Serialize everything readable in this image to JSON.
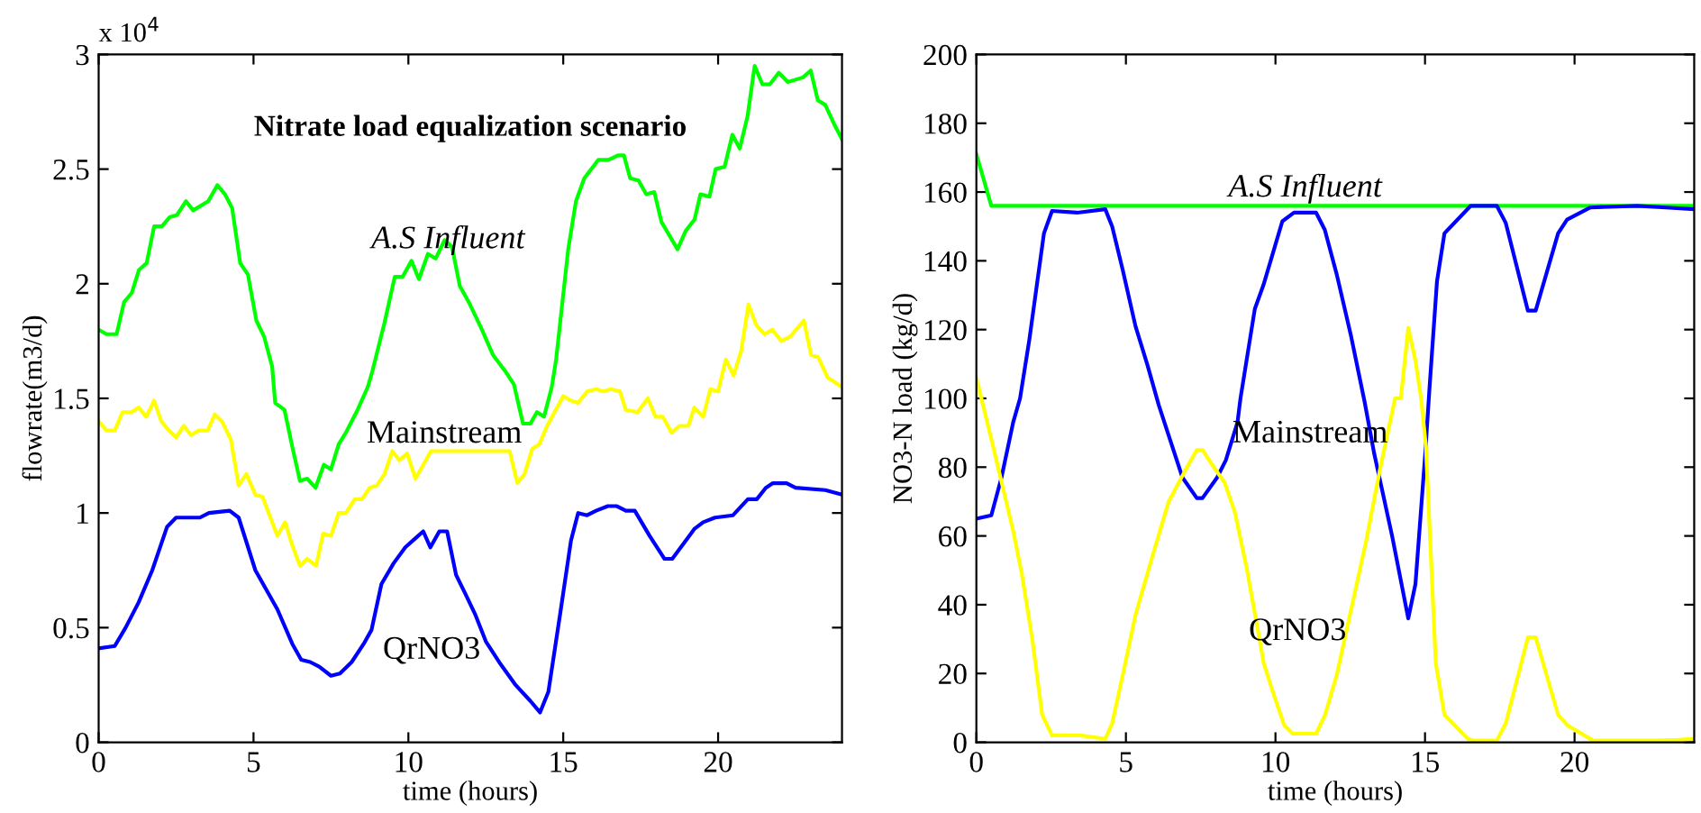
{
  "chart_data": [
    {
      "type": "line",
      "title": "Nitrate load equalization scenario",
      "xlabel": "time (hours)",
      "ylabel": "flowrate(m3/d)",
      "xlim": [
        0,
        24
      ],
      "xticks": [
        0,
        5,
        10,
        15,
        20
      ],
      "ylim": [
        0,
        3
      ],
      "yticks": [
        0,
        0.5,
        1,
        1.5,
        2,
        2.5,
        3
      ],
      "grid": false,
      "line_style": "solid",
      "marker": "none",
      "annotations": [
        "x 10$^{4}$",
        "A.S Influent",
        "Mainstream",
        "QrNO3"
      ],
      "series": [
        {
          "color": "#00ff00",
          "x": [
            0,
            0.25,
            0.58,
            0.82,
            1.07,
            1.3,
            1.55,
            1.79,
            2.04,
            2.29,
            2.53,
            2.82,
            3.05,
            3.54,
            3.83,
            4.08,
            4.31,
            4.57,
            4.82,
            5.09,
            5.34,
            5.6,
            5.7,
            6.0,
            6.25,
            6.5,
            6.73,
            7.0,
            7.27,
            7.5,
            7.75,
            7.98,
            8.36,
            8.69,
            8.84,
            9.23,
            9.56,
            9.81,
            10.1,
            10.34,
            10.63,
            10.88,
            11.17,
            11.41,
            11.66,
            11.95,
            12.34,
            12.73,
            13.12,
            13.41,
            13.7,
            13.94,
            14.15,
            14.38,
            14.63,
            14.77,
            15.16,
            15.41,
            15.68,
            16.13,
            16.46,
            16.77,
            16.96,
            17.16,
            17.43,
            17.68,
            17.94,
            18.17,
            18.69,
            18.95,
            19.24,
            19.43,
            19.72,
            19.92,
            20.21,
            20.46,
            20.7,
            20.95,
            21.18,
            21.43,
            21.67,
            21.96,
            22.25,
            22.74,
            22.99,
            23.22,
            23.46,
            23.77,
            24
          ],
          "values": [
            1.8,
            1.78,
            1.78,
            1.92,
            1.96,
            2.06,
            2.09,
            2.25,
            2.25,
            2.29,
            2.3,
            2.36,
            2.32,
            2.36,
            2.43,
            2.39,
            2.33,
            2.09,
            2.04,
            1.84,
            1.77,
            1.64,
            1.48,
            1.45,
            1.29,
            1.14,
            1.15,
            1.11,
            1.21,
            1.19,
            1.3,
            1.35,
            1.45,
            1.55,
            1.62,
            1.83,
            2.03,
            2.03,
            2.1,
            2.02,
            2.13,
            2.11,
            2.19,
            2.16,
            1.99,
            1.92,
            1.81,
            1.69,
            1.62,
            1.56,
            1.39,
            1.39,
            1.44,
            1.42,
            1.55,
            1.67,
            2.15,
            2.36,
            2.46,
            2.54,
            2.54,
            2.56,
            2.56,
            2.46,
            2.45,
            2.39,
            2.4,
            2.27,
            2.15,
            2.23,
            2.28,
            2.39,
            2.38,
            2.5,
            2.51,
            2.65,
            2.59,
            2.73,
            2.95,
            2.87,
            2.87,
            2.92,
            2.88,
            2.9,
            2.93,
            2.8,
            2.78,
            2.69,
            2.63
          ]
        },
        {
          "color": "#ffff00",
          "x": [
            0,
            0.25,
            0.52,
            0.77,
            1.06,
            1.29,
            1.54,
            1.79,
            2.02,
            2.27,
            2.5,
            2.75,
            2.98,
            3.23,
            3.52,
            3.75,
            3.98,
            4.27,
            4.52,
            4.77,
            5.06,
            5.29,
            5.52,
            5.77,
            6.02,
            6.25,
            6.5,
            6.73,
            7.02,
            7.25,
            7.5,
            7.75,
            7.98,
            8.27,
            8.5,
            8.75,
            8.98,
            9.23,
            9.48,
            9.71,
            9.96,
            10.23,
            10.48,
            10.73,
            13.27,
            13.52,
            13.75,
            14.0,
            14.23,
            14.48,
            15.0,
            15.25,
            15.48,
            15.77,
            16.06,
            16.29,
            16.54,
            16.83,
            17.02,
            17.4,
            17.73,
            17.98,
            18.21,
            18.5,
            18.75,
            19.04,
            19.23,
            19.52,
            19.75,
            20.0,
            20.25,
            20.5,
            20.75,
            20.98,
            21.23,
            21.5,
            21.75,
            22.04,
            22.33,
            22.77,
            23.0,
            23.23,
            23.54,
            24
          ],
          "values": [
            1.4,
            1.36,
            1.36,
            1.44,
            1.44,
            1.46,
            1.42,
            1.49,
            1.4,
            1.36,
            1.33,
            1.38,
            1.34,
            1.36,
            1.36,
            1.43,
            1.4,
            1.32,
            1.12,
            1.17,
            1.08,
            1.07,
            0.99,
            0.9,
            0.96,
            0.86,
            0.77,
            0.8,
            0.77,
            0.91,
            0.9,
            1.0,
            1.0,
            1.06,
            1.06,
            1.11,
            1.12,
            1.17,
            1.27,
            1.23,
            1.26,
            1.15,
            1.21,
            1.27,
            1.27,
            1.13,
            1.17,
            1.28,
            1.3,
            1.38,
            1.51,
            1.49,
            1.48,
            1.53,
            1.54,
            1.53,
            1.54,
            1.53,
            1.45,
            1.44,
            1.5,
            1.42,
            1.42,
            1.35,
            1.38,
            1.38,
            1.46,
            1.42,
            1.54,
            1.53,
            1.67,
            1.6,
            1.71,
            1.91,
            1.82,
            1.78,
            1.8,
            1.75,
            1.77,
            1.84,
            1.69,
            1.68,
            1.59,
            1.55
          ]
        },
        {
          "color": "#0000ff",
          "x": [
            0,
            0.52,
            0.87,
            1.29,
            1.73,
            2.21,
            2.5,
            3.27,
            3.56,
            4.23,
            4.52,
            5.06,
            5.77,
            6.25,
            6.54,
            6.83,
            7.12,
            7.5,
            7.79,
            8.17,
            8.56,
            8.81,
            9.13,
            9.52,
            9.9,
            10.23,
            10.48,
            10.71,
            11.0,
            11.25,
            11.54,
            11.83,
            12.15,
            12.5,
            12.98,
            13.46,
            13.94,
            14.25,
            14.52,
            14.9,
            15.25,
            15.48,
            15.77,
            16.06,
            16.44,
            16.73,
            17.02,
            17.31,
            17.79,
            18.27,
            18.52,
            18.85,
            19.23,
            19.52,
            19.9,
            20.48,
            20.96,
            21.25,
            21.54,
            21.77,
            22.21,
            22.5,
            23.46,
            24
          ],
          "values": [
            0.41,
            0.42,
            0.5,
            0.61,
            0.75,
            0.94,
            0.98,
            0.98,
            1.0,
            1.01,
            0.98,
            0.75,
            0.58,
            0.43,
            0.36,
            0.35,
            0.33,
            0.29,
            0.3,
            0.35,
            0.43,
            0.49,
            0.69,
            0.78,
            0.85,
            0.89,
            0.92,
            0.85,
            0.92,
            0.92,
            0.73,
            0.65,
            0.56,
            0.44,
            0.34,
            0.25,
            0.18,
            0.13,
            0.22,
            0.56,
            0.88,
            1.0,
            0.99,
            1.01,
            1.03,
            1.03,
            1.01,
            1.01,
            0.9,
            0.8,
            0.8,
            0.86,
            0.93,
            0.96,
            0.98,
            0.99,
            1.06,
            1.06,
            1.11,
            1.13,
            1.13,
            1.11,
            1.1,
            1.08
          ]
        }
      ]
    },
    {
      "type": "line",
      "xlabel": "time (hours)",
      "ylabel": "NO3-N load (kg/d)",
      "xlim": [
        0,
        24
      ],
      "xticks": [
        0,
        5,
        10,
        15,
        20
      ],
      "ylim": [
        0,
        200
      ],
      "yticks": [
        0,
        20,
        40,
        60,
        80,
        100,
        120,
        140,
        160,
        180,
        200
      ],
      "grid": false,
      "line_style": "solid",
      "marker": "none",
      "annotations": [
        "A.S Influent",
        "Mainstream",
        "QrNO3"
      ],
      "series": [
        {
          "color": "#00ff00",
          "x": [
            0,
            0.5,
            6,
            12,
            18,
            24
          ],
          "values": [
            171,
            156,
            156,
            156,
            156,
            156
          ]
        },
        {
          "color": "#0000ff",
          "x": [
            0,
            0.5,
            0.84,
            1.23,
            1.46,
            1.77,
            2.26,
            2.53,
            3.37,
            4.31,
            4.54,
            4.89,
            5.32,
            5.71,
            6.1,
            6.4,
            6.89,
            7.37,
            7.56,
            8.05,
            8.34,
            8.73,
            8.83,
            9.31,
            9.6,
            10.23,
            10.62,
            11.36,
            11.65,
            12.05,
            12.53,
            12.98,
            13.3,
            13.9,
            14.44,
            14.68,
            15.0,
            15.15,
            15.4,
            15.65,
            16.53,
            17.4,
            17.7,
            18.44,
            18.7,
            19.45,
            19.75,
            20.53,
            22.09,
            23.06,
            24
          ],
          "values": [
            65,
            66,
            77,
            93,
            100,
            117,
            148,
            154.5,
            154,
            155,
            150,
            137.5,
            121,
            110,
            98,
            90,
            77,
            71,
            71,
            77,
            82,
            93,
            100,
            126,
            133,
            151.5,
            154,
            154,
            149,
            136,
            118,
            99,
            84,
            60,
            36,
            46,
            83,
            103,
            134,
            148,
            156,
            156,
            151,
            125.5,
            125.5,
            148,
            152,
            155.5,
            156,
            155.5,
            155
          ]
        },
        {
          "color": "#ffff00",
          "x": [
            0,
            0.45,
            1.23,
            1.52,
            1.87,
            2.2,
            2.53,
            3.47,
            4.31,
            4.54,
            4.93,
            5.32,
            5.85,
            6.43,
            6.98,
            7.37,
            7.56,
            7.86,
            8.3,
            8.64,
            9.03,
            9.61,
            9.9,
            10.29,
            10.58,
            11.36,
            11.66,
            12.05,
            12.49,
            13.02,
            13.51,
            14.0,
            14.19,
            14.44,
            14.68,
            14.87,
            15.03,
            15.36,
            15.65,
            16.43,
            16.63,
            17.4,
            17.7,
            18.44,
            18.7,
            19.45,
            19.75,
            20.62,
            22.66,
            23.5,
            24
          ],
          "values": [
            106,
            90,
            61.5,
            49,
            30,
            8,
            2,
            2,
            1,
            5.5,
            21,
            37,
            53,
            70,
            79,
            85,
            85,
            81,
            75.5,
            67,
            51,
            23,
            15,
            5,
            2.5,
            2.5,
            8,
            19.6,
            37,
            58,
            80,
            100,
            100,
            120.5,
            111,
            100,
            86,
            23,
            8,
            1,
            0.5,
            0.5,
            5.5,
            30.5,
            30.5,
            8,
            5,
            0.5,
            0.5,
            0.7,
            1
          ]
        }
      ]
    }
  ]
}
